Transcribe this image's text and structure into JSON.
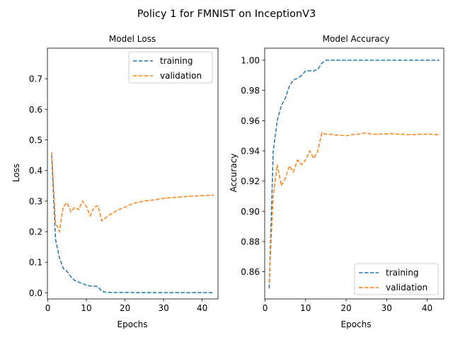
{
  "figure": {
    "title": "Policy 1 for FMNIST on InceptionV3"
  },
  "colors": {
    "training": "#1f77b4",
    "validation": "#ff7f0e"
  },
  "chart_data": [
    {
      "id": "loss",
      "type": "line",
      "title": "Model Loss",
      "xlabel": "Epochs",
      "ylabel": "Loss",
      "xlim": [
        -0.1,
        44.1
      ],
      "ylim": [
        -0.02,
        0.8
      ],
      "xticks": [
        0,
        10,
        20,
        30,
        40
      ],
      "yticks": [
        0.0,
        0.1,
        0.2,
        0.3,
        0.4,
        0.5,
        0.6,
        0.7
      ],
      "ytick_labels": [
        "0.0",
        "0.1",
        "0.2",
        "0.3",
        "0.4",
        "0.5",
        "0.6",
        "0.7"
      ],
      "grid": false,
      "legend": "upper-right",
      "series": [
        {
          "name": "training",
          "x": [
            1,
            2,
            3,
            4,
            5,
            6,
            7,
            8,
            9,
            10,
            11,
            12,
            13,
            14,
            15,
            16,
            17,
            18,
            19,
            20,
            21,
            22,
            23,
            24,
            25,
            26,
            27,
            28,
            29,
            30,
            31,
            32,
            33,
            34,
            35,
            36,
            37,
            38,
            39,
            40,
            41,
            42,
            43
          ],
          "y": [
            0.45,
            0.175,
            0.115,
            0.08,
            0.07,
            0.052,
            0.04,
            0.035,
            0.03,
            0.025,
            0.022,
            0.022,
            0.02,
            0.005,
            0.002,
            0.001,
            0.001,
            0.001,
            0.001,
            0.001,
            0.001,
            0.001,
            0.0005,
            0.0005,
            0.0005,
            0.0005,
            0.0005,
            0.0005,
            0.0005,
            0.0005,
            0.0005,
            0.0005,
            0.0005,
            0.0005,
            0.0005,
            0.0005,
            0.0005,
            0.0005,
            0.0005,
            0.0005,
            0.0005,
            0.0005,
            0.0005
          ]
        },
        {
          "name": "validation",
          "x": [
            1,
            2,
            3,
            4,
            5,
            6,
            7,
            8,
            9,
            10,
            11,
            12,
            13,
            14,
            15,
            16,
            17,
            18,
            19,
            20,
            21,
            22,
            23,
            24,
            25,
            26,
            27,
            28,
            29,
            30,
            31,
            32,
            33,
            34,
            35,
            36,
            37,
            38,
            39,
            40,
            41,
            42,
            43
          ],
          "y": [
            0.46,
            0.23,
            0.2,
            0.28,
            0.295,
            0.265,
            0.28,
            0.272,
            0.3,
            0.282,
            0.252,
            0.28,
            0.285,
            0.235,
            0.245,
            0.255,
            0.262,
            0.27,
            0.275,
            0.28,
            0.286,
            0.292,
            0.295,
            0.298,
            0.3,
            0.302,
            0.303,
            0.305,
            0.307,
            0.309,
            0.31,
            0.311,
            0.312,
            0.313,
            0.314,
            0.315,
            0.316,
            0.316,
            0.317,
            0.318,
            0.318,
            0.319,
            0.319
          ]
        }
      ]
    },
    {
      "id": "accuracy",
      "type": "line",
      "title": "Model Accuracy",
      "xlabel": "Epochs",
      "ylabel": "Accuracy",
      "xlim": [
        -0.1,
        44.1
      ],
      "ylim": [
        0.842,
        1.008
      ],
      "xticks": [
        0,
        10,
        20,
        30,
        40
      ],
      "yticks": [
        0.86,
        0.88,
        0.9,
        0.92,
        0.94,
        0.96,
        0.98,
        1.0
      ],
      "ytick_labels": [
        "0.86",
        "0.88",
        "0.90",
        "0.92",
        "0.94",
        "0.96",
        "0.98",
        "1.00"
      ],
      "grid": false,
      "legend": "lower-right",
      "series": [
        {
          "name": "training",
          "x": [
            1,
            2,
            3,
            4,
            5,
            6,
            7,
            8,
            9,
            10,
            11,
            12,
            13,
            14,
            15,
            16,
            17,
            18,
            19,
            20,
            21,
            22,
            23,
            24,
            25,
            26,
            27,
            28,
            29,
            30,
            31,
            32,
            33,
            34,
            35,
            36,
            37,
            38,
            39,
            40,
            41,
            42,
            43
          ],
          "y": [
            0.849,
            0.94,
            0.96,
            0.97,
            0.975,
            0.983,
            0.987,
            0.988,
            0.99,
            0.993,
            0.993,
            0.993,
            0.994,
            0.998,
            1.0,
            1.0,
            1.0,
            1.0,
            1.0,
            1.0,
            1.0,
            1.0,
            1.0,
            1.0,
            1.0,
            1.0,
            1.0,
            1.0,
            1.0,
            1.0,
            1.0,
            1.0,
            1.0,
            1.0,
            1.0,
            1.0,
            1.0,
            1.0,
            1.0,
            1.0,
            1.0,
            1.0,
            1.0
          ]
        },
        {
          "name": "validation",
          "x": [
            1,
            2,
            3,
            4,
            5,
            6,
            7,
            8,
            9,
            10,
            11,
            12,
            13,
            14,
            15,
            16,
            17,
            18,
            19,
            20,
            21,
            22,
            23,
            24,
            25,
            26,
            27,
            28,
            29,
            30,
            31,
            32,
            33,
            34,
            35,
            36,
            37,
            38,
            39,
            40,
            41,
            42,
            43
          ],
          "y": [
            0.853,
            0.91,
            0.931,
            0.917,
            0.922,
            0.93,
            0.926,
            0.934,
            0.931,
            0.934,
            0.94,
            0.935,
            0.94,
            0.952,
            0.951,
            0.951,
            0.9505,
            0.9505,
            0.9502,
            0.95,
            0.9505,
            0.951,
            0.951,
            0.9515,
            0.952,
            0.9512,
            0.951,
            0.951,
            0.9512,
            0.9512,
            0.9515,
            0.9512,
            0.951,
            0.951,
            0.9508,
            0.9508,
            0.9508,
            0.951,
            0.951,
            0.951,
            0.951,
            0.9508,
            0.9508
          ]
        }
      ]
    }
  ]
}
